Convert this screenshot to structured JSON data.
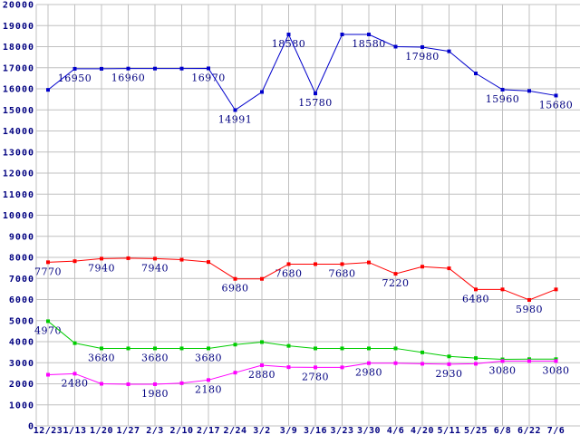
{
  "chart_data": {
    "type": "line",
    "title": "",
    "xlabel": "",
    "ylabel": "",
    "background_color": "#ffffff",
    "grid": true,
    "grid_color": "#c0c0c0",
    "axis_label_color": "#000080",
    "point_label_color": "#000080",
    "y_axis": {
      "min": 0,
      "max": 20000,
      "step": 1000
    },
    "categories": [
      "12/23",
      "1/13",
      "1/20",
      "1/27",
      "2/3",
      "2/10",
      "2/17",
      "2/24",
      "3/2",
      "3/9",
      "3/16",
      "3/23",
      "3/30",
      "4/6",
      "4/20",
      "5/11",
      "5/25",
      "6/8",
      "6/22",
      "7/6"
    ],
    "series": [
      {
        "name": "blue-series",
        "color": "#0000cc",
        "values": [
          15950,
          16950,
          16950,
          16960,
          16960,
          16960,
          16970,
          14991,
          15850,
          18580,
          15780,
          18580,
          18580,
          18000,
          17980,
          17780,
          16730,
          15960,
          15900,
          15680
        ],
        "point_labels": {
          "1": "16950",
          "3": "16960",
          "6": "16970",
          "7": "14991",
          "9": "18580",
          "10": "15780",
          "12": "18580",
          "14": "17980",
          "17": "15960",
          "19": "15680"
        }
      },
      {
        "name": "red-series",
        "color": "#ff0000",
        "values": [
          7770,
          7820,
          7940,
          7960,
          7940,
          7890,
          7780,
          6980,
          6980,
          7680,
          7680,
          7680,
          7760,
          7220,
          7560,
          7480,
          6480,
          6480,
          5980,
          6480
        ],
        "point_labels": {
          "0": "7770",
          "2": "7940",
          "4": "7940",
          "7": "6980",
          "9": "7680",
          "11": "7680",
          "13": "7220",
          "16": "6480",
          "18": "5980"
        }
      },
      {
        "name": "green-series",
        "color": "#00cc00",
        "values": [
          4970,
          3930,
          3680,
          3680,
          3680,
          3680,
          3680,
          3860,
          3980,
          3800,
          3680,
          3680,
          3680,
          3680,
          3490,
          3300,
          3220,
          3160,
          3170,
          3170
        ],
        "point_labels": {
          "0": "4970",
          "2": "3680",
          "4": "3680",
          "6": "3680"
        }
      },
      {
        "name": "magenta-series",
        "color": "#ff00ff",
        "values": [
          2430,
          2480,
          2000,
          1980,
          1980,
          2030,
          2180,
          2530,
          2880,
          2790,
          2780,
          2780,
          2980,
          2980,
          2950,
          2930,
          2950,
          3080,
          3080,
          3080
        ],
        "point_labels": {
          "1": "2480",
          "4": "1980",
          "6": "2180",
          "8": "2880",
          "10": "2780",
          "12": "2980",
          "15": "2930",
          "17": "3080",
          "19": "3080"
        }
      }
    ]
  }
}
